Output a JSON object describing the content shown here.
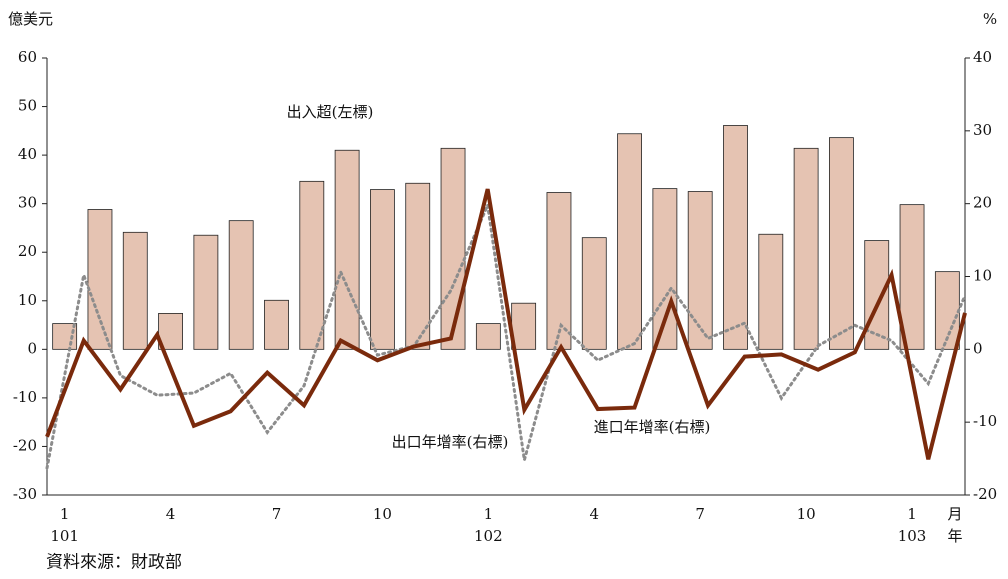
{
  "chart_data": {
    "type": "bar_line",
    "y_label": "億美元",
    "y2_label": "%",
    "source": "資料來源：財政部",
    "x_unit_month": "月",
    "x_unit_year": "年",
    "categories": [
      "1",
      null,
      null,
      "4",
      null,
      null,
      "7",
      null,
      null,
      "10",
      null,
      null,
      "1",
      null,
      null,
      "4",
      null,
      null,
      "7",
      null,
      null,
      "10",
      null,
      null,
      "1",
      null
    ],
    "year_labels": [
      "101",
      null,
      null,
      null,
      null,
      null,
      null,
      null,
      null,
      null,
      null,
      null,
      "102",
      null,
      null,
      null,
      null,
      null,
      null,
      null,
      null,
      null,
      null,
      null,
      "103",
      null
    ],
    "series": [
      {
        "name": "出入超(左標)",
        "kind": "bar",
        "color": "#e5c3b2",
        "values": [
          5.3,
          28.8,
          24.1,
          7.4,
          23.5,
          26.5,
          10.1,
          34.6,
          41.0,
          32.9,
          34.2,
          41.4,
          5.3,
          9.5,
          32.3,
          23.0,
          44.4,
          33.1,
          32.5,
          46.1,
          23.7,
          41.4,
          43.6,
          22.4,
          29.8,
          16.0
        ]
      },
      {
        "name": "出口年增率(右標)",
        "kind": "line",
        "axis": "y2",
        "color": "#8c8c8c",
        "dash": true,
        "values": [
          -16.3,
          10.2,
          -3.6,
          -6.3,
          -6.0,
          -3.3,
          -11.4,
          -5.0,
          10.6,
          -0.8,
          0.5,
          8.1,
          19.8,
          -15.2,
          3.3,
          -1.5,
          0.8,
          8.4,
          1.5,
          3.6,
          -6.7,
          0.5,
          3.3,
          1.2,
          -4.7,
          7.4
        ]
      },
      {
        "name": "進口年增率(右標)",
        "kind": "line",
        "axis": "y2",
        "color": "#7a2a0c",
        "dash": false,
        "values": [
          -12.0,
          1.2,
          -5.5,
          2.0,
          -10.5,
          -8.5,
          -3.2,
          -7.7,
          1.2,
          -1.5,
          0.4,
          1.5,
          22.0,
          -8.3,
          0.3,
          -8.2,
          -8.0,
          6.6,
          -7.7,
          -1.0,
          -0.7,
          -2.8,
          -0.4,
          10.2,
          -15.1,
          5.0
        ]
      }
    ],
    "ylim": [
      -30,
      60
    ],
    "yticks": [
      -30,
      -20,
      -10,
      0,
      10,
      20,
      30,
      40,
      50,
      60
    ],
    "y2lim": [
      -20,
      40
    ],
    "y2ticks": [
      -20,
      -10,
      0,
      10,
      20,
      30,
      40
    ]
  }
}
